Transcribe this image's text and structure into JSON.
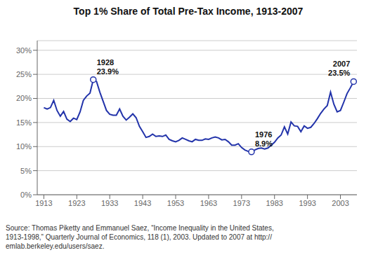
{
  "chart_data": {
    "type": "line",
    "title": "Top 1% Share of Total Pre-Tax Income, 1913-2007",
    "color": "#2233aa",
    "grid": "y",
    "xlim": [
      1911,
      2008
    ],
    "ylim": [
      0,
      0.32
    ],
    "xticks": [
      1913,
      1923,
      1933,
      1943,
      1953,
      1963,
      1973,
      1983,
      1993,
      2003
    ],
    "yticks": [
      {
        "value": 0.0,
        "label": "0%"
      },
      {
        "value": 0.05,
        "label": "5%"
      },
      {
        "value": 0.1,
        "label": "10%"
      },
      {
        "value": 0.15,
        "label": "15%"
      },
      {
        "value": 0.2,
        "label": "20%"
      },
      {
        "value": 0.25,
        "label": "25%"
      },
      {
        "value": 0.3,
        "label": "30%"
      }
    ],
    "annotations": [
      {
        "x": 1928,
        "y": 0.239,
        "text": "1928\n23.9%"
      },
      {
        "x": 1976,
        "y": 0.089,
        "text": "1976\n8.9%"
      },
      {
        "x": 2007,
        "y": 0.235,
        "text": "2007\n23.5%"
      }
    ],
    "source": "Source: Thomas Piketty and Emmanuel Saez, “Income Inequality in the United States,\n1913-1998,” Quarterly Journal of Economics, 118 (1), 2003. Updated to 2007 at http://\nemlab.berkeley.edu/users/saez.",
    "x": [
      1913,
      1914,
      1915,
      1916,
      1917,
      1918,
      1919,
      1920,
      1921,
      1922,
      1923,
      1924,
      1925,
      1926,
      1927,
      1928,
      1929,
      1930,
      1931,
      1932,
      1933,
      1934,
      1935,
      1936,
      1937,
      1938,
      1939,
      1940,
      1941,
      1942,
      1943,
      1944,
      1945,
      1946,
      1947,
      1948,
      1949,
      1950,
      1951,
      1952,
      1953,
      1954,
      1955,
      1956,
      1957,
      1958,
      1959,
      1960,
      1961,
      1962,
      1963,
      1964,
      1965,
      1966,
      1967,
      1968,
      1969,
      1970,
      1971,
      1972,
      1973,
      1974,
      1975,
      1976,
      1977,
      1978,
      1979,
      1980,
      1981,
      1982,
      1983,
      1984,
      1985,
      1986,
      1987,
      1988,
      1989,
      1990,
      1991,
      1992,
      1993,
      1994,
      1995,
      1996,
      1997,
      1998,
      1999,
      2000,
      2001,
      2002,
      2003,
      2004,
      2005,
      2006,
      2007
    ],
    "values": [
      0.181,
      0.178,
      0.181,
      0.196,
      0.175,
      0.163,
      0.173,
      0.157,
      0.152,
      0.159,
      0.156,
      0.172,
      0.196,
      0.205,
      0.211,
      0.239,
      0.235,
      0.213,
      0.194,
      0.175,
      0.167,
      0.165,
      0.165,
      0.178,
      0.163,
      0.155,
      0.161,
      0.168,
      0.16,
      0.142,
      0.131,
      0.119,
      0.121,
      0.126,
      0.121,
      0.122,
      0.121,
      0.124,
      0.115,
      0.112,
      0.11,
      0.113,
      0.118,
      0.115,
      0.112,
      0.11,
      0.115,
      0.113,
      0.113,
      0.116,
      0.115,
      0.118,
      0.12,
      0.118,
      0.114,
      0.115,
      0.11,
      0.103,
      0.103,
      0.106,
      0.098,
      0.093,
      0.09,
      0.089,
      0.093,
      0.096,
      0.097,
      0.095,
      0.097,
      0.103,
      0.109,
      0.118,
      0.124,
      0.141,
      0.126,
      0.151,
      0.143,
      0.142,
      0.131,
      0.143,
      0.138,
      0.14,
      0.148,
      0.158,
      0.169,
      0.178,
      0.185,
      0.213,
      0.188,
      0.172,
      0.175,
      0.192,
      0.21,
      0.222,
      0.235
    ]
  }
}
